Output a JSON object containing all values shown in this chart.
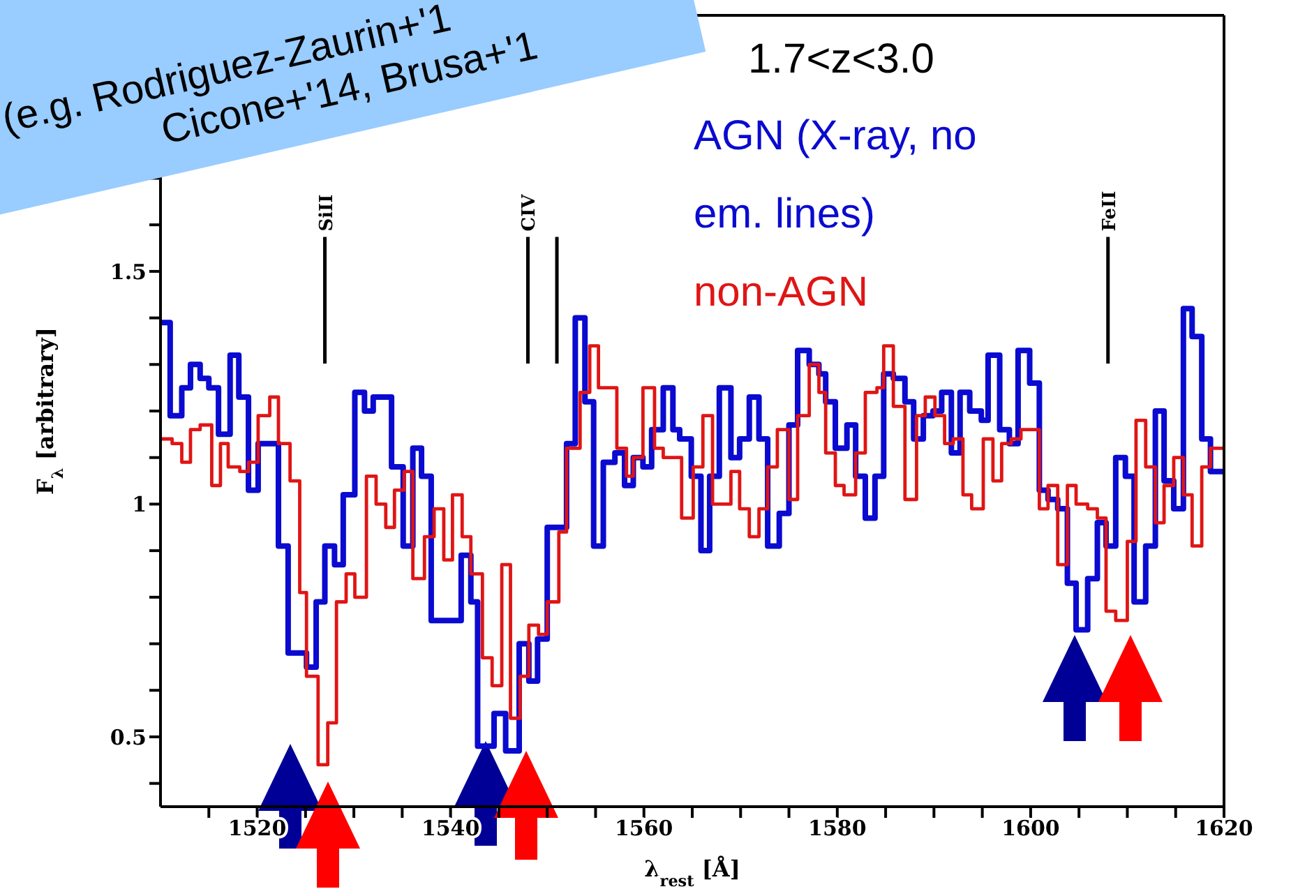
{
  "chart_data": {
    "type": "step",
    "xlabel": "λ$_{rest}$ [Å]",
    "ylabel": "F$_{λ}$ [arbitrary]",
    "xlim": [
      1510,
      1620
    ],
    "xticks": [
      {
        "value": 1515,
        "label": null
      },
      1520,
      {
        "value": 1525,
        "label": null
      },
      {
        "value": 1530,
        "label": null
      },
      {
        "value": 1535,
        "label": null
      },
      1540,
      {
        "value": 1545,
        "label": null
      },
      {
        "value": 1550,
        "label": null
      },
      {
        "value": 1555,
        "label": null
      },
      1560,
      {
        "value": 1565,
        "label": null
      },
      {
        "value": 1570,
        "label": null
      },
      {
        "value": 1575,
        "label": null
      },
      1580,
      {
        "value": 1585,
        "label": null
      },
      {
        "value": 1590,
        "label": null
      },
      {
        "value": 1595,
        "label": null
      },
      1600,
      {
        "value": 1605,
        "label": null
      },
      {
        "value": 1610,
        "label": null
      },
      {
        "value": 1615,
        "label": null
      },
      1620
    ],
    "ylim": [
      0.35,
      2.05
    ],
    "yticks": [
      {
        "value": 0.4,
        "label": null
      },
      0.5,
      {
        "value": 0.6,
        "label": null
      },
      {
        "value": 0.7,
        "label": null
      },
      {
        "value": 0.8,
        "label": null
      },
      {
        "value": 0.9,
        "label": null
      },
      1,
      {
        "value": 1.1,
        "label": null
      },
      {
        "value": 1.2,
        "label": null
      },
      {
        "value": 1.3,
        "label": null
      },
      {
        "value": 1.4,
        "label": null
      },
      1.5,
      {
        "value": 1.6,
        "label": null
      },
      {
        "value": 1.7,
        "label": null
      },
      {
        "value": 1.8,
        "label": null
      },
      {
        "value": 1.9,
        "label": null
      },
      {
        "value": 2.0,
        "label": null
      }
    ],
    "legend": "top right",
    "series": [
      {
        "name": "AGN (X-ray, no em. lines)",
        "color": "#0a0ad0",
        "x": [
          1510,
          1511.0,
          1512.2,
          1513.1,
          1514.1,
          1515.0,
          1516.0,
          1517.2,
          1518.1,
          1519.1,
          1520.1,
          1522.2,
          1523.2,
          1525.1,
          1526.1,
          1527.0,
          1528.0,
          1528.9,
          1530.1,
          1531.1,
          1532.0,
          1533.9,
          1535.1,
          1536.1,
          1537.0,
          1538.0,
          1541.1,
          1542.1,
          1542.8,
          1544.5,
          1545.7,
          1547.1,
          1548.1,
          1549.0,
          1550.0,
          1552.0,
          1552.9,
          1553.9,
          1554.8,
          1555.8,
          1557.0,
          1558.0,
          1558.9,
          1559.9,
          1560.8,
          1562.0,
          1563.0,
          1563.7,
          1564.9,
          1565.9,
          1566.8,
          1567.8,
          1569.0,
          1569.9,
          1570.9,
          1571.9,
          1572.8,
          1574.0,
          1575.0,
          1575.9,
          1577.1,
          1578.1,
          1578.8,
          1579.8,
          1581.0,
          1581.9,
          1582.9,
          1583.9,
          1584.8,
          1585.8,
          1587.0,
          1587.9,
          1588.9,
          1589.9,
          1590.8,
          1591.8,
          1592.7,
          1593.7,
          1594.9,
          1595.6,
          1596.8,
          1597.8,
          1598.7,
          1599.9,
          1600.9,
          1601.8,
          1602.8,
          1603.8,
          1604.7,
          1605.9,
          1606.9,
          1607.8,
          1608.8,
          1609.8,
          1610.7,
          1611.9,
          1612.9,
          1613.8,
          1614.8,
          1615.8,
          1616.7,
          1617.7,
          1618.6,
          1620
        ],
        "values": [
          1.39,
          1.19,
          1.25,
          1.3,
          1.27,
          1.25,
          1.15,
          1.32,
          1.23,
          1.03,
          1.13,
          0.91,
          0.68,
          0.65,
          0.79,
          0.91,
          0.87,
          1.02,
          1.24,
          1.2,
          1.23,
          1.08,
          0.91,
          1.12,
          1.06,
          0.75,
          0.89,
          0.79,
          0.48,
          0.55,
          0.47,
          0.7,
          0.62,
          0.71,
          0.95,
          1.13,
          1.4,
          1.22,
          0.91,
          1.09,
          1.11,
          1.04,
          1.1,
          1.08,
          1.16,
          1.25,
          1.16,
          1.14,
          1.06,
          0.9,
          1.06,
          1.25,
          1.1,
          1.14,
          1.23,
          1.14,
          0.91,
          0.98,
          1.17,
          1.33,
          1.3,
          1.28,
          1.22,
          1.12,
          1.17,
          1.06,
          0.97,
          1.06,
          1.28,
          1.27,
          1.22,
          1.14,
          1.19,
          1.2,
          1.24,
          1.11,
          1.24,
          1.2,
          1.18,
          1.32,
          1.16,
          1.13,
          1.33,
          1.26,
          1.03,
          1.01,
          0.99,
          0.83,
          0.73,
          0.84,
          0.96,
          0.91,
          1.1,
          1.06,
          0.79,
          0.91,
          1.2,
          1.05,
          0.99,
          1.42,
          1.36,
          1.14,
          1.07,
          1.07
        ]
      },
      {
        "name": "non-AGN",
        "color": "#e01515",
        "x": [
          1510,
          1511.2,
          1512.2,
          1513.1,
          1514.1,
          1515.3,
          1516.2,
          1517.0,
          1518.2,
          1519.1,
          1520.1,
          1521.3,
          1522.2,
          1523.4,
          1524.4,
          1525.1,
          1526.3,
          1527.3,
          1528.2,
          1529.2,
          1530.1,
          1531.3,
          1532.3,
          1533.3,
          1534.2,
          1535.2,
          1536.1,
          1537.3,
          1538.3,
          1539.3,
          1540.2,
          1541.2,
          1542.1,
          1543.3,
          1544.3,
          1545.3,
          1546.2,
          1547.2,
          1548.1,
          1549.1,
          1550.0,
          1551.2,
          1552.0,
          1553.4,
          1554.4,
          1555.3,
          1557.2,
          1558.2,
          1558.9,
          1559.9,
          1561.1,
          1562.0,
          1563.0,
          1563.9,
          1565.1,
          1566.1,
          1567.1,
          1568.0,
          1569.0,
          1569.9,
          1570.9,
          1571.9,
          1572.8,
          1573.8,
          1575.0,
          1575.9,
          1577.1,
          1578.1,
          1578.8,
          1579.8,
          1580.7,
          1581.9,
          1582.9,
          1584.1,
          1584.8,
          1585.8,
          1587.0,
          1588.2,
          1589.1,
          1590.1,
          1591.1,
          1592.0,
          1593.0,
          1593.9,
          1595.1,
          1596.1,
          1597.0,
          1598.0,
          1599.0,
          1600.9,
          1601.8,
          1602.8,
          1603.8,
          1604.7,
          1605.9,
          1606.9,
          1607.8,
          1608.8,
          1610.0,
          1610.9,
          1611.9,
          1612.9,
          1613.8,
          1614.8,
          1615.8,
          1616.7,
          1617.7,
          1618.6,
          1620
        ],
        "values": [
          1.14,
          1.13,
          1.09,
          1.16,
          1.17,
          1.04,
          1.13,
          1.08,
          1.07,
          1.09,
          1.19,
          1.23,
          1.13,
          1.05,
          0.81,
          0.63,
          0.44,
          0.53,
          0.79,
          0.85,
          0.8,
          1.06,
          1.0,
          0.95,
          1.03,
          1.07,
          0.84,
          0.93,
          0.99,
          0.88,
          1.02,
          0.93,
          0.85,
          0.67,
          0.61,
          0.87,
          0.54,
          0.63,
          0.74,
          0.72,
          0.79,
          0.94,
          1.12,
          1.24,
          1.34,
          1.25,
          1.12,
          1.06,
          1.1,
          1.25,
          1.12,
          1.1,
          1.1,
          0.97,
          1.08,
          1.19,
          1.0,
          1.0,
          1.07,
          0.99,
          0.93,
          0.99,
          1.08,
          1.16,
          1.01,
          1.19,
          1.3,
          1.24,
          1.11,
          1.04,
          1.02,
          1.11,
          1.24,
          1.25,
          1.34,
          1.21,
          1.01,
          1.19,
          1.23,
          1.19,
          1.13,
          1.14,
          1.02,
          0.99,
          1.14,
          1.05,
          1.13,
          1.14,
          1.16,
          0.99,
          1.04,
          0.87,
          1.04,
          1.0,
          0.99,
          0.97,
          0.77,
          0.75,
          0.92,
          1.18,
          1.08,
          0.96,
          1.04,
          1.1,
          1.02,
          0.91,
          1.08,
          1.12,
          1.12
        ]
      }
    ],
    "ref_lines": [
      {
        "axis": "x",
        "value": 1527,
        "label": "SiII",
        "color": "#000000"
      },
      {
        "axis": "x",
        "value": 1548,
        "label": "CIV",
        "color": "#000000"
      },
      {
        "axis": "x",
        "value": 1551,
        "label": null,
        "color": "#000000"
      },
      {
        "axis": "x",
        "value": 1608,
        "label": "FeII",
        "color": "#000000"
      }
    ],
    "annotations": [
      "1.7<z<3.0",
      "(e.g. Rodriguez-Zaurin+'1",
      "Cicone+'14, Brusa+'1"
    ]
  }
}
